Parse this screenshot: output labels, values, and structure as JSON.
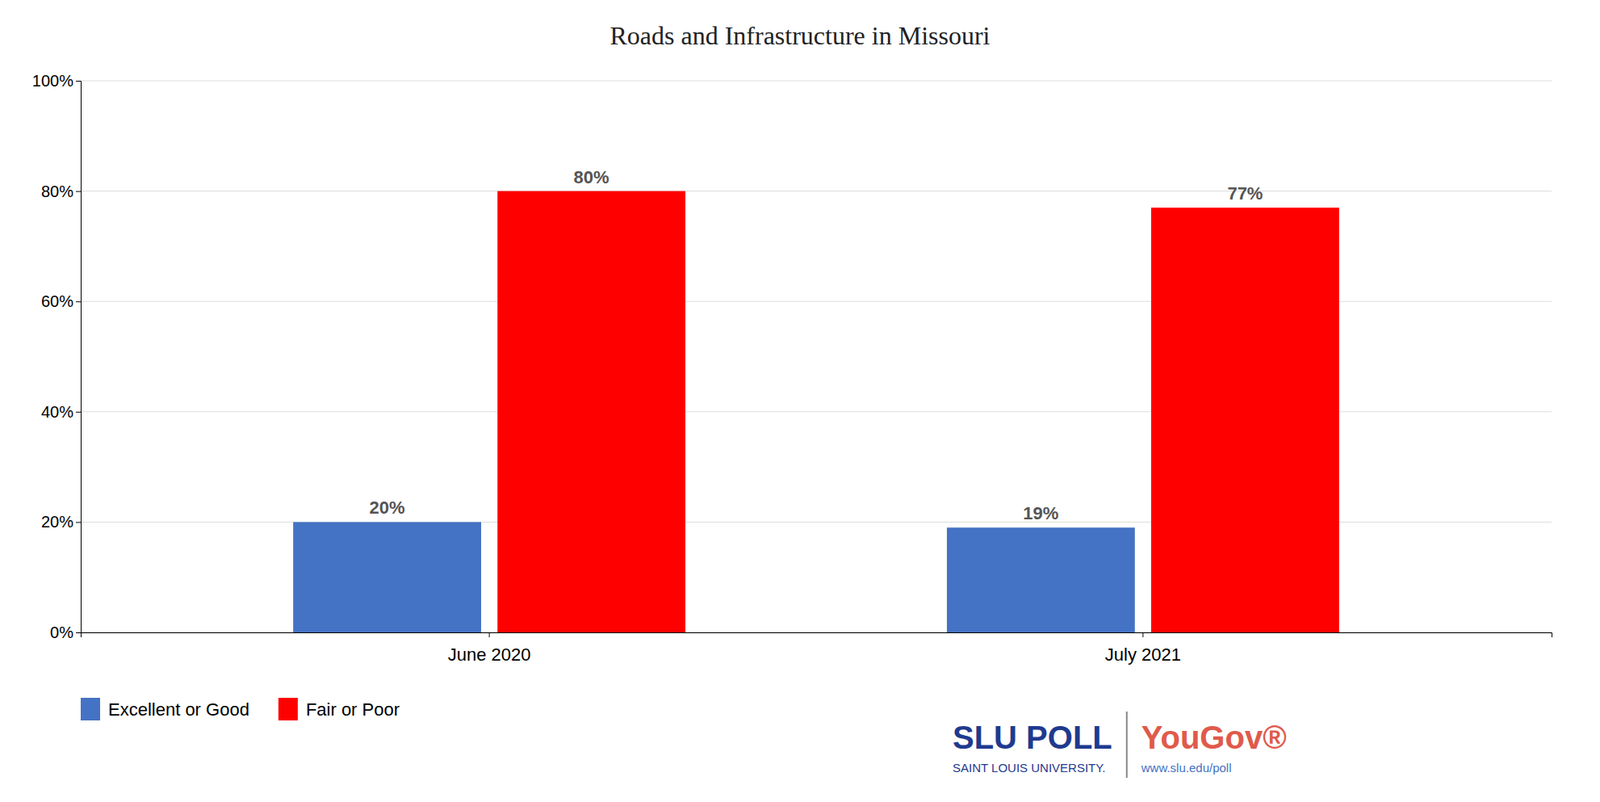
{
  "chart_data": {
    "type": "bar",
    "title": "Roads and Infrastructure in Missouri",
    "categories": [
      "June 2020",
      "July 2021"
    ],
    "series": [
      {
        "name": "Excellent or Good",
        "color": "#4472C4",
        "values": [
          20,
          19
        ],
        "value_labels": [
          "20%",
          "19%"
        ]
      },
      {
        "name": "Fair or Poor",
        "color": "#FF0000",
        "values": [
          80,
          77
        ],
        "value_labels": [
          "80%",
          "77%"
        ]
      }
    ],
    "ylim": [
      0,
      100
    ],
    "yticks": [
      {
        "value": 0,
        "label": "0%"
      },
      {
        "value": 20,
        "label": "20%"
      },
      {
        "value": 40,
        "label": "40%"
      },
      {
        "value": 60,
        "label": "60%"
      },
      {
        "value": 80,
        "label": "80%"
      },
      {
        "value": 100,
        "label": "100%"
      }
    ],
    "grid": true,
    "legend": "lower left",
    "data_labels": true,
    "annotations": [
      {
        "text": "SLU POLL",
        "color": "#1F3A8F"
      },
      {
        "text": "SAINT LOUIS UNIVERSITY.",
        "color": "#1F3A8F"
      },
      {
        "text": "YouGov®",
        "color": "#E05A4B"
      },
      {
        "text": "www.slu.edu/poll",
        "color": "#4472C4"
      }
    ]
  }
}
